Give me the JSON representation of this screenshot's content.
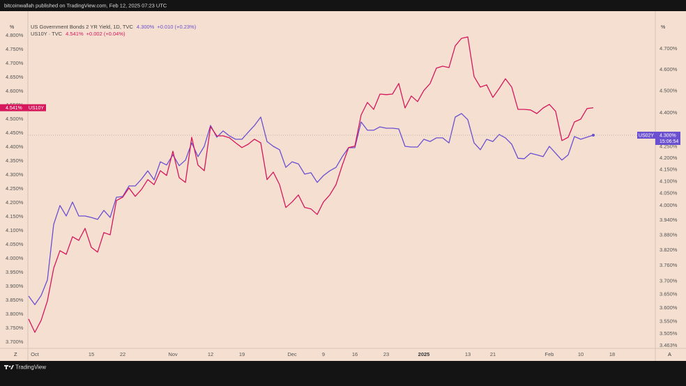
{
  "header": {
    "text": "bitcoinwallah published on TradingView.com, Feb 12, 2025 07:23 UTC"
  },
  "footer": {
    "brand": "TradingView"
  },
  "chart_data": {
    "type": "line",
    "axis_unit": "%",
    "corner_left": "Z",
    "corner_right": "A",
    "grid": false,
    "y2log": true,
    "categories": [
      null,
      "Oct",
      null,
      null,
      null,
      null,
      null,
      null,
      null,
      null,
      "15",
      null,
      null,
      null,
      null,
      "22",
      null,
      null,
      null,
      null,
      null,
      null,
      null,
      "Nov",
      null,
      null,
      null,
      null,
      null,
      "12",
      null,
      null,
      null,
      null,
      "19",
      null,
      null,
      null,
      null,
      null,
      null,
      null,
      "Dec",
      null,
      null,
      null,
      null,
      "9",
      null,
      null,
      null,
      null,
      "16",
      null,
      null,
      null,
      null,
      "23",
      null,
      null,
      null,
      null,
      null,
      "2025",
      null,
      null,
      null,
      null,
      null,
      null,
      "13",
      null,
      null,
      null,
      "21",
      null,
      null,
      null,
      null,
      null,
      null,
      null,
      null,
      "Feb",
      null,
      null,
      null,
      null,
      "10",
      null,
      null,
      null,
      null,
      "18"
    ],
    "series": [
      {
        "name": "US02Y",
        "legend_text": "US Government Bonds 2 YR Yield, 1D, TVC",
        "last_label": "4.300%",
        "change": "+0.010 (+0.23%)",
        "countdown": "15:06:54",
        "color": "#6a4fd1",
        "axis": "y2",
        "values": [
          3.644,
          3.612,
          3.646,
          3.705,
          3.923,
          4.0,
          3.957,
          4.014,
          3.957,
          3.957,
          3.951,
          3.943,
          3.98,
          3.951,
          4.034,
          4.037,
          4.081,
          4.081,
          4.11,
          4.145,
          4.107,
          4.184,
          4.17,
          4.214,
          4.167,
          4.191,
          4.266,
          4.206,
          4.251,
          4.343,
          4.291,
          4.319,
          4.297,
          4.282,
          4.282,
          4.313,
          4.343,
          4.381,
          4.272,
          4.251,
          4.236,
          4.16,
          4.184,
          4.175,
          4.131,
          4.137,
          4.096,
          4.125,
          4.145,
          4.16,
          4.206,
          4.245,
          4.245,
          4.359,
          4.322,
          4.322,
          4.337,
          4.331,
          4.331,
          4.328,
          4.251,
          4.248,
          4.248,
          4.282,
          4.272,
          4.288,
          4.288,
          4.266,
          4.381,
          4.397,
          4.369,
          4.266,
          4.236,
          4.282,
          4.272,
          4.303,
          4.288,
          4.26,
          4.199,
          4.197,
          4.221,
          4.214,
          4.206,
          4.251,
          4.221,
          4.191,
          4.214,
          4.294,
          4.282,
          4.291,
          4.3,
          null,
          null,
          null
        ]
      },
      {
        "name": "US10Y",
        "legend_text": "US10Y · TVC",
        "last_label": "4.541%",
        "change": "+0.002 (+0.04%)",
        "color": "#d6175b",
        "axis": "y",
        "values": [
          3.783,
          3.735,
          3.778,
          3.848,
          3.965,
          4.028,
          4.015,
          4.078,
          4.065,
          4.108,
          4.04,
          4.023,
          4.093,
          4.085,
          4.208,
          4.22,
          4.253,
          4.223,
          4.248,
          4.283,
          4.265,
          4.315,
          4.298,
          4.385,
          4.29,
          4.273,
          4.435,
          4.335,
          4.315,
          4.473,
          4.44,
          4.44,
          4.433,
          4.415,
          4.398,
          4.41,
          4.428,
          4.415,
          4.283,
          4.31,
          4.265,
          4.183,
          4.203,
          4.228,
          4.183,
          4.178,
          4.158,
          4.203,
          4.228,
          4.265,
          4.335,
          4.398,
          4.403,
          4.515,
          4.56,
          4.535,
          4.59,
          4.588,
          4.59,
          4.628,
          4.54,
          4.583,
          4.563,
          4.603,
          4.628,
          4.683,
          4.69,
          4.685,
          4.763,
          4.79,
          4.795,
          4.653,
          4.615,
          4.623,
          4.578,
          4.61,
          4.645,
          4.615,
          4.535,
          4.535,
          4.533,
          4.52,
          4.54,
          4.553,
          4.528,
          4.423,
          4.435,
          4.49,
          4.5,
          4.538,
          4.541,
          null,
          null,
          null
        ]
      }
    ],
    "ylim": [
      3.6775,
      4.8275
    ],
    "yticks": [
      {
        "value": 3.7,
        "label": "3.700%"
      },
      {
        "value": 3.75,
        "label": "3.750%"
      },
      {
        "value": 3.8,
        "label": "3.800%"
      },
      {
        "value": 3.85,
        "label": "3.850%"
      },
      {
        "value": 3.9,
        "label": "3.900%"
      },
      {
        "value": 3.95,
        "label": "3.950%"
      },
      {
        "value": 4.0,
        "label": "4.000%"
      },
      {
        "value": 4.05,
        "label": "4.050%"
      },
      {
        "value": 4.1,
        "label": "4.100%"
      },
      {
        "value": 4.15,
        "label": "4.150%"
      },
      {
        "value": 4.2,
        "label": "4.200%"
      },
      {
        "value": 4.25,
        "label": "4.250%"
      },
      {
        "value": 4.3,
        "label": "4.300%"
      },
      {
        "value": 4.35,
        "label": "4.350%"
      },
      {
        "value": 4.4,
        "label": "4.400%"
      },
      {
        "value": 4.45,
        "label": "4.450%"
      },
      {
        "value": 4.5,
        "label": "4.500%"
      },
      {
        "value": 4.55,
        "label": "4.550%"
      },
      {
        "value": 4.6,
        "label": "4.600%"
      },
      {
        "value": 4.65,
        "label": "4.650%"
      },
      {
        "value": 4.7,
        "label": "4.700%"
      },
      {
        "value": 4.75,
        "label": "4.750%"
      },
      {
        "value": 4.8,
        "label": "4.800%"
      }
    ],
    "y2lim": [
      3.453,
      4.802
    ],
    "y2ticks": [
      {
        "value": 3.463,
        "label": "3.463%"
      },
      {
        "value": 3.505,
        "label": "3.505%"
      },
      {
        "value": 3.55,
        "label": "3.550%"
      },
      {
        "value": 3.6,
        "label": "3.600%"
      },
      {
        "value": 3.65,
        "label": "3.650%"
      },
      {
        "value": 3.7,
        "label": "3.700%"
      },
      {
        "value": 3.76,
        "label": "3.760%"
      },
      {
        "value": 3.82,
        "label": "3.820%"
      },
      {
        "value": 3.88,
        "label": "3.880%"
      },
      {
        "value": 3.94,
        "label": "3.940%"
      },
      {
        "value": 4.0,
        "label": "4.000%"
      },
      {
        "value": 4.05,
        "label": "4.050%"
      },
      {
        "value": 4.1,
        "label": "4.100%"
      },
      {
        "value": 4.15,
        "label": "4.150%"
      },
      {
        "value": 4.2,
        "label": "4.200%"
      },
      {
        "value": 4.25,
        "label": "4.250%"
      },
      {
        "value": 4.4,
        "label": "4.400%"
      },
      {
        "value": 4.5,
        "label": "4.500%"
      },
      {
        "value": 4.6,
        "label": "4.600%"
      },
      {
        "value": 4.7,
        "label": "4.700%"
      }
    ]
  }
}
